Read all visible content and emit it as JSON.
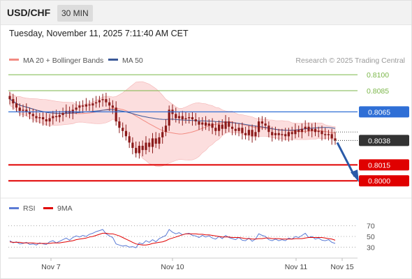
{
  "header": {
    "symbol": "USD/CHF",
    "timeframe": "30 MIN",
    "timestamp": "Tuesday, November 11, 2025 7:11:40 AM CET"
  },
  "legend": {
    "ma20_label": "MA 20 + Bollinger Bands",
    "ma50_label": "MA 50",
    "credit": "Research © 2025 Trading Central",
    "rsi_label": "RSI",
    "rsi_ma_label": "9MA"
  },
  "colors": {
    "ma20": "#f28b82",
    "bollinger_fill": "#fbd3d3",
    "ma50": "#3b5998",
    "candle": "#8b1a1a",
    "target_green": "#7ab648",
    "resistance_blue": "#2f6fd6",
    "support_red": "#e00000",
    "last_price_box": "#333333",
    "rsi": "#5b7bd5",
    "rsi_ma": "#e00000",
    "arrow": "#2a5aa8"
  },
  "chart_data": [
    {
      "type": "candlestick",
      "title": "USD/CHF",
      "timeframe": "30 MIN",
      "ylim": [
        0.7985,
        0.8108
      ],
      "x_labels": [
        "Nov 7",
        "Nov 10",
        "Nov 11",
        "Nov 15"
      ],
      "levels": [
        {
          "label": "0.8100",
          "value": 0.81,
          "kind": "target"
        },
        {
          "label": "0.8085",
          "value": 0.8085,
          "kind": "target"
        },
        {
          "label": "0.8065",
          "value": 0.8065,
          "kind": "resistance"
        },
        {
          "label": "0.8038",
          "value": 0.8038,
          "kind": "last"
        },
        {
          "label": "0.8015",
          "value": 0.8015,
          "kind": "support"
        },
        {
          "label": "0.8000",
          "value": 0.8,
          "kind": "support"
        }
      ],
      "close": [
        0.8077,
        0.8073,
        0.8069,
        0.8066,
        0.8067,
        0.8065,
        0.8063,
        0.8061,
        0.8059,
        0.806,
        0.8058,
        0.8056,
        0.8059,
        0.8061,
        0.806,
        0.8062,
        0.8064,
        0.8066,
        0.8064,
        0.8067,
        0.8069,
        0.8071,
        0.807,
        0.8072,
        0.8071,
        0.8073,
        0.8074,
        0.8076,
        0.8077,
        0.8074,
        0.8071,
        0.8069,
        0.8056,
        0.805,
        0.8047,
        0.8042,
        0.8036,
        0.8031,
        0.8026,
        0.8033,
        0.8029,
        0.8036,
        0.8032,
        0.804,
        0.8035,
        0.8041,
        0.8046,
        0.8052,
        0.8067,
        0.8063,
        0.8059,
        0.8061,
        0.8058,
        0.8059,
        0.806,
        0.8058,
        0.8056,
        0.8053,
        0.8055,
        0.8052,
        0.8054,
        0.805,
        0.8047,
        0.8053,
        0.8049,
        0.8056,
        0.8051,
        0.8049,
        0.8047,
        0.805,
        0.8045,
        0.8043,
        0.8048,
        0.8042,
        0.8046,
        0.8056,
        0.8054,
        0.8052,
        0.8046,
        0.8043,
        0.8045,
        0.8043,
        0.8044,
        0.8042,
        0.8046,
        0.8044,
        0.8048,
        0.8046,
        0.8049,
        0.8051,
        0.8047,
        0.8049,
        0.8046,
        0.8047,
        0.8044,
        0.8043,
        0.8044,
        0.804,
        0.8038
      ],
      "series": [
        {
          "name": "MA 20 + Bollinger Bands",
          "role": "MA 20"
        },
        {
          "name": "MA 50",
          "role": "MA 50"
        }
      ]
    },
    {
      "type": "line",
      "title": "RSI",
      "ylim": [
        20,
        80
      ],
      "y_ticks": [
        70,
        50,
        30
      ],
      "series": [
        {
          "name": "RSI",
          "values": [
            42,
            38,
            40,
            36,
            37,
            39,
            35,
            36,
            34,
            38,
            36,
            35,
            40,
            42,
            38,
            41,
            44,
            47,
            43,
            48,
            51,
            49,
            52,
            50,
            54,
            56,
            59,
            61,
            63,
            55,
            51,
            48,
            36,
            34,
            32,
            33,
            30,
            31,
            29,
            38,
            36,
            42,
            39,
            44,
            40,
            46,
            49,
            52,
            63,
            58,
            55,
            57,
            53,
            55,
            56,
            52,
            51,
            48,
            52,
            49,
            51,
            47,
            45,
            50,
            46,
            52,
            48,
            46,
            44,
            48,
            43,
            42,
            47,
            41,
            45,
            55,
            52,
            50,
            44,
            42,
            45,
            42,
            44,
            42,
            47,
            45,
            50,
            48,
            52,
            56,
            48,
            50,
            45,
            47,
            43,
            42,
            44,
            39,
            37
          ]
        },
        {
          "name": "9MA",
          "values": [
            40,
            39,
            39,
            39,
            38,
            38,
            38,
            38,
            37,
            37,
            37,
            37,
            37,
            38,
            38,
            38,
            39,
            40,
            41,
            42,
            44,
            45,
            46,
            47,
            49,
            50,
            52,
            54,
            56,
            56,
            55,
            55,
            53,
            51,
            48,
            45,
            42,
            39,
            36,
            35,
            34,
            34,
            35,
            37,
            38,
            39,
            40,
            42,
            45,
            47,
            49,
            51,
            53,
            55,
            55,
            55,
            55,
            54,
            54,
            53,
            53,
            52,
            51,
            50,
            49,
            49,
            49,
            48,
            48,
            48,
            47,
            46,
            46,
            45,
            45,
            46,
            46,
            47,
            47,
            46,
            46,
            46,
            45,
            45,
            45,
            45,
            46,
            46,
            46,
            47,
            48,
            48,
            48,
            48,
            48,
            47,
            46,
            45,
            43
          ]
        }
      ]
    }
  ]
}
